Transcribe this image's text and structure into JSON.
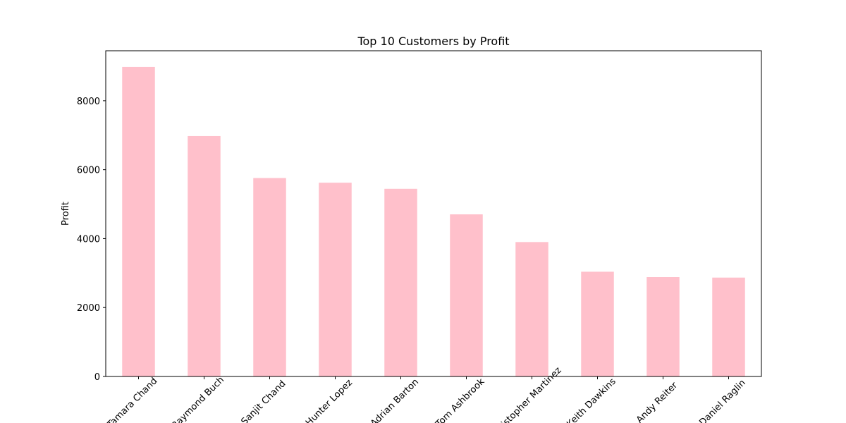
{
  "chart_data": {
    "type": "bar",
    "title": "Top 10 Customers by Profit",
    "y_label": "Profit",
    "categories": [
      "Tamara Chand",
      "Raymond Buch",
      "Sanjit Chand",
      "Hunter Lopez",
      "Adrian Barton",
      "Tom Ashbrook",
      "Christopher Martinez",
      "Keith Dawkins",
      "Andy Reiter",
      "Daniel Raglin"
    ],
    "values": [
      8981,
      6976,
      5757,
      5622,
      5445,
      4703,
      3900,
      3039,
      2884,
      2869
    ],
    "color": "#ffc0cb",
    "ylim": [
      0,
      9450
    ],
    "yticks": [
      0,
      2000,
      4000,
      6000,
      8000
    ],
    "grid": false
  }
}
